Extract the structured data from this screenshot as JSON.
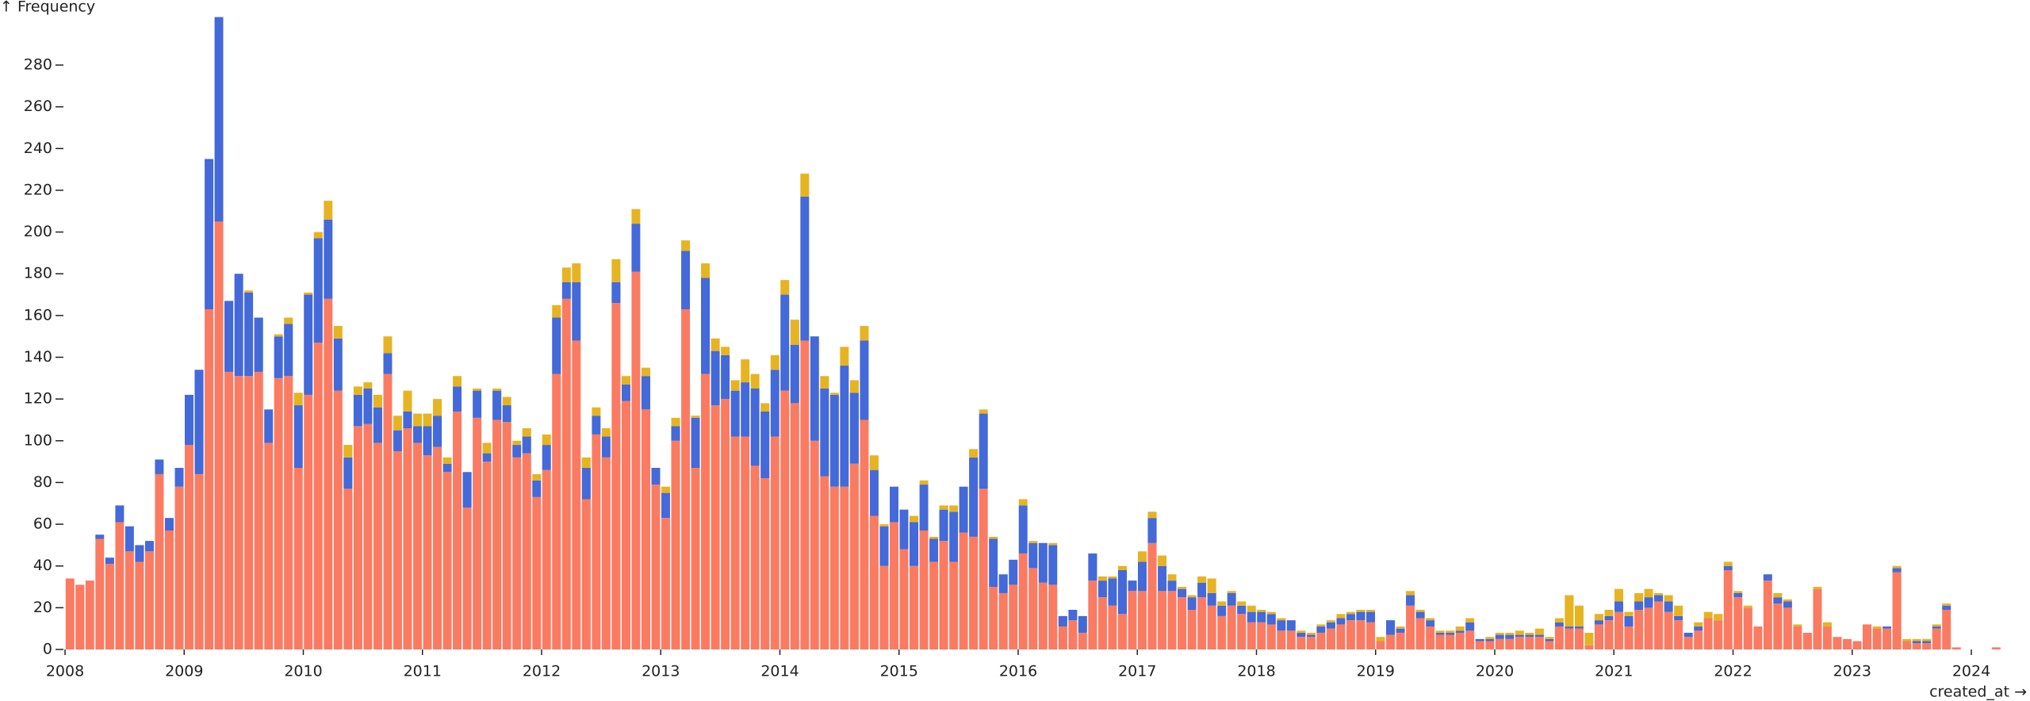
{
  "chart_data": {
    "type": "histogram",
    "stacked": true,
    "y_label": "↑ Frequency",
    "x_label": "created_at →",
    "xlim": [
      2008,
      2024.25
    ],
    "ylim": [
      0,
      305
    ],
    "xticks": [
      2008,
      2009,
      2010,
      2011,
      2012,
      2013,
      2014,
      2015,
      2016,
      2017,
      2018,
      2019,
      2020,
      2021,
      2022,
      2023,
      2024
    ],
    "yticks": [
      0,
      20,
      40,
      60,
      80,
      100,
      120,
      140,
      160,
      180,
      200,
      220,
      240,
      260,
      280
    ],
    "bins": [
      2008,
      2008.083,
      2008.167,
      2008.25,
      2008.333,
      2008.417,
      2008.5,
      2008.583,
      2008.667,
      2008.75,
      2008.833,
      2008.917,
      2009,
      2009.083,
      2009.167,
      2009.25,
      2009.333,
      2009.417,
      2009.5,
      2009.583,
      2009.667,
      2009.75,
      2009.833,
      2009.917,
      2010,
      2010.083,
      2010.167,
      2010.25,
      2010.333,
      2010.417,
      2010.5,
      2010.583,
      2010.667,
      2010.75,
      2010.833,
      2010.917,
      2011,
      2011.083,
      2011.167,
      2011.25,
      2011.333,
      2011.417,
      2011.5,
      2011.583,
      2011.667,
      2011.75,
      2011.833,
      2011.917,
      2012,
      2012.083,
      2012.167,
      2012.25,
      2012.333,
      2012.417,
      2012.5,
      2012.583,
      2012.667,
      2012.75,
      2012.833,
      2012.917,
      2013,
      2013.083,
      2013.167,
      2013.25,
      2013.333,
      2013.417,
      2013.5,
      2013.583,
      2013.667,
      2013.75,
      2013.833,
      2013.917,
      2014,
      2014.083,
      2014.167,
      2014.25,
      2014.333,
      2014.417,
      2014.5,
      2014.583,
      2014.667,
      2014.75,
      2014.833,
      2014.917,
      2015,
      2015.083,
      2015.167,
      2015.25,
      2015.333,
      2015.417,
      2015.5,
      2015.583,
      2015.667,
      2015.75,
      2015.833,
      2015.917,
      2016,
      2016.083,
      2016.167,
      2016.25,
      2016.333,
      2016.417,
      2016.5,
      2016.583,
      2016.667,
      2016.75,
      2016.833,
      2016.917,
      2017,
      2017.083,
      2017.167,
      2017.25,
      2017.333,
      2017.417,
      2017.5,
      2017.583,
      2017.667,
      2017.75,
      2017.833,
      2017.917,
      2018,
      2018.083,
      2018.167,
      2018.25,
      2018.333,
      2018.417,
      2018.5,
      2018.583,
      2018.667,
      2018.75,
      2018.833,
      2018.917,
      2019,
      2019.083,
      2019.167,
      2019.25,
      2019.333,
      2019.417,
      2019.5,
      2019.583,
      2019.667,
      2019.75,
      2019.833,
      2019.917,
      2020,
      2020.083,
      2020.167,
      2020.25,
      2020.333,
      2020.417,
      2020.5,
      2020.583,
      2020.667,
      2020.75,
      2020.833,
      2020.917,
      2021,
      2021.083,
      2021.167,
      2021.25,
      2021.333,
      2021.417,
      2021.5,
      2021.583,
      2021.667,
      2021.75,
      2021.833,
      2021.917,
      2022,
      2022.083,
      2022.167,
      2022.25,
      2022.333,
      2022.417,
      2022.5,
      2022.583,
      2022.667,
      2022.75,
      2022.833,
      2022.917,
      2023,
      2023.083,
      2023.167,
      2023.25,
      2023.333,
      2023.417,
      2023.5,
      2023.583,
      2023.667,
      2023.75,
      2023.833,
      2023.917,
      2024,
      2024.083,
      2024.167,
      2024.25
    ],
    "series": [
      {
        "color": "#fa7b62",
        "values": [
          34,
          31,
          33,
          53,
          41,
          61,
          47,
          42,
          47,
          84,
          57,
          78,
          98,
          84,
          163,
          205,
          133,
          131,
          131,
          133,
          99,
          130,
          131,
          87,
          122,
          147,
          168,
          124,
          77,
          107,
          108,
          99,
          132,
          95,
          106,
          99,
          93,
          97,
          85,
          114,
          68,
          111,
          90,
          110,
          109,
          92,
          94,
          73,
          86,
          132,
          168,
          148,
          72,
          103,
          92,
          166,
          119,
          181,
          115,
          79,
          63,
          100,
          163,
          87,
          132,
          117,
          120,
          102,
          102,
          88,
          82,
          102,
          124,
          118,
          148,
          100,
          83,
          78,
          78,
          89,
          110,
          64,
          40,
          61,
          48,
          40,
          57,
          42,
          52,
          42,
          56,
          54,
          77,
          30,
          27,
          31,
          46,
          39,
          32,
          31,
          11,
          14,
          8,
          33,
          25,
          21,
          17,
          28,
          28,
          51,
          28,
          28,
          25,
          19,
          25,
          21,
          16,
          21,
          17,
          13,
          13,
          12,
          9,
          9,
          6,
          6,
          8,
          10,
          12,
          14,
          14,
          13,
          4,
          7,
          8,
          21,
          15,
          11,
          7,
          7,
          8,
          9,
          4,
          4,
          5,
          5,
          6,
          6,
          6,
          4,
          11,
          10,
          10,
          2,
          12,
          14,
          18,
          11,
          19,
          20,
          23,
          18,
          14,
          6,
          9,
          15,
          14,
          38,
          25,
          20,
          11,
          33,
          22,
          20,
          11,
          8,
          29,
          11,
          6,
          5,
          4,
          12,
          10,
          10,
          37,
          4,
          3,
          3,
          10,
          19,
          1,
          0,
          0,
          0,
          1
        ]
      },
      {
        "color": "#4469d8",
        "values": [
          0,
          0,
          0,
          2,
          3,
          8,
          12,
          8,
          5,
          7,
          6,
          9,
          24,
          50,
          72,
          98,
          34,
          49,
          40,
          26,
          16,
          20,
          25,
          30,
          48,
          50,
          38,
          25,
          15,
          15,
          17,
          17,
          10,
          10,
          8,
          8,
          14,
          15,
          4,
          12,
          17,
          13,
          4,
          14,
          8,
          6,
          8,
          8,
          12,
          27,
          8,
          28,
          15,
          9,
          10,
          10,
          8,
          23,
          16,
          8,
          12,
          7,
          28,
          24,
          46,
          26,
          21,
          22,
          26,
          37,
          32,
          32,
          46,
          28,
          69,
          50,
          42,
          44,
          58,
          34,
          38,
          22,
          19,
          17,
          19,
          21,
          22,
          11,
          15,
          24,
          22,
          38,
          36,
          23,
          9,
          12,
          23,
          12,
          19,
          19,
          5,
          5,
          8,
          13,
          8,
          13,
          21,
          5,
          14,
          12,
          12,
          5,
          4,
          6,
          7,
          6,
          5,
          6,
          4,
          5,
          5,
          5,
          5,
          5,
          2,
          1,
          3,
          3,
          3,
          3,
          4,
          5,
          0,
          7,
          2,
          5,
          3,
          3,
          1,
          1,
          1,
          4,
          1,
          1,
          2,
          2,
          1,
          1,
          1,
          1,
          2,
          1,
          1,
          0,
          2,
          2,
          5,
          5,
          4,
          5,
          3,
          5,
          2,
          2,
          2,
          0,
          0,
          2,
          2,
          0,
          0,
          3,
          3,
          3,
          0,
          0,
          0,
          0,
          0,
          0,
          0,
          0,
          0,
          1,
          2,
          0,
          1,
          1,
          1,
          2,
          0,
          0,
          0,
          0,
          0
        ]
      },
      {
        "color": "#e6b422",
        "values": [
          0,
          0,
          0,
          0,
          0,
          0,
          0,
          0,
          0,
          0,
          0,
          0,
          0,
          0,
          0,
          0,
          0,
          0,
          1,
          0,
          0,
          1,
          3,
          6,
          1,
          3,
          9,
          6,
          6,
          4,
          3,
          6,
          8,
          7,
          10,
          6,
          6,
          8,
          3,
          5,
          0,
          1,
          5,
          1,
          4,
          2,
          4,
          3,
          5,
          6,
          7,
          9,
          5,
          4,
          4,
          11,
          4,
          7,
          4,
          0,
          3,
          4,
          5,
          1,
          7,
          6,
          4,
          5,
          11,
          7,
          4,
          7,
          7,
          12,
          11,
          0,
          6,
          1,
          9,
          6,
          7,
          7,
          1,
          0,
          0,
          3,
          2,
          1,
          2,
          3,
          0,
          4,
          2,
          1,
          0,
          0,
          3,
          1,
          0,
          1,
          0,
          0,
          0,
          0,
          2,
          1,
          2,
          0,
          5,
          3,
          5,
          3,
          1,
          1,
          3,
          7,
          2,
          1,
          2,
          3,
          1,
          1,
          1,
          0,
          1,
          1,
          1,
          1,
          2,
          1,
          1,
          1,
          2,
          0,
          1,
          2,
          1,
          1,
          1,
          1,
          2,
          2,
          0,
          1,
          1,
          1,
          2,
          1,
          3,
          1,
          2,
          15,
          10,
          6,
          3,
          3,
          6,
          2,
          4,
          4,
          1,
          3,
          5,
          0,
          2,
          3,
          3,
          2,
          1,
          1,
          0,
          0,
          2,
          1,
          1,
          0,
          1,
          2,
          0,
          0,
          0,
          0,
          1,
          0,
          1,
          1,
          1,
          1,
          1,
          1,
          0,
          0,
          0,
          0,
          0
        ]
      }
    ]
  }
}
